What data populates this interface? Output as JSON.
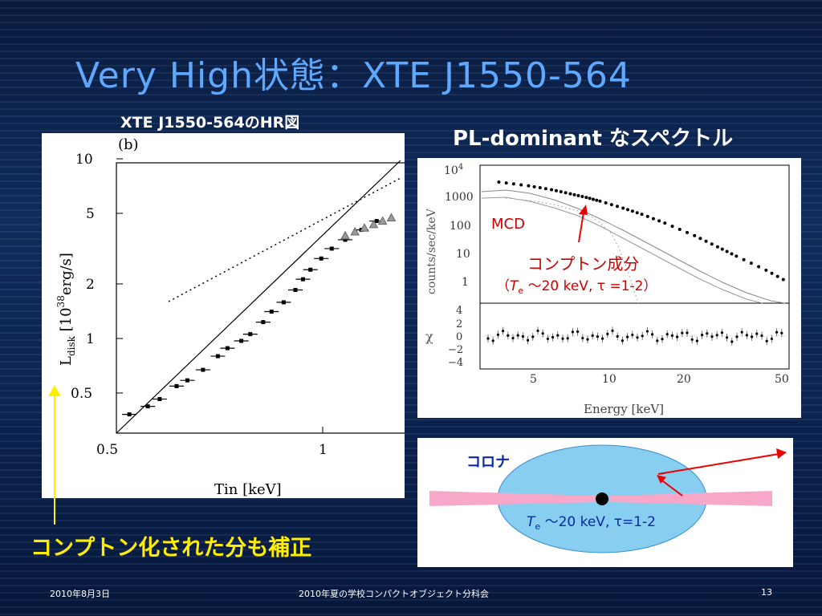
{
  "slide": {
    "title": "Very High状態：XTE J1550-564",
    "left_caption": "XTE J1550-564のHR図",
    "right_caption": "PL-dominant なスペクトル",
    "bottom_note": "コンプトン化された分も補正"
  },
  "footer": {
    "date": "2010年8月3日",
    "event": "2010年夏の学校コンパクトオブジェクト分科会",
    "page": "13"
  },
  "hr_plot": {
    "panel_label": "(b)",
    "ylabel_prefix": "L",
    "ylabel_sub": "disk",
    "ylabel_mid": " [10",
    "ylabel_sup": "38",
    "ylabel_suffix": "erg/s]",
    "xlabel": "Tin [keV]",
    "y_ticks": [
      "10",
      "5",
      "2",
      "1",
      "0.5"
    ],
    "x_ticks": [
      "0.5",
      "1"
    ]
  },
  "spectrum_plot": {
    "top_ylabel": "counts/sec/keV",
    "top_ytick_base": "10",
    "top_ytick_exp": "4",
    "top_yticks": [
      "1000",
      "100",
      "10",
      "1"
    ],
    "bottom_ylabel": "χ",
    "bottom_yticks": [
      "4",
      "2",
      "0",
      "−2",
      "−4"
    ],
    "xticks": [
      "5",
      "10",
      "20",
      "50"
    ],
    "xlabel": "Energy [keV]",
    "mcd_label": "MCD",
    "compton_label": "コンプトン成分",
    "compton_params_open": "（",
    "compton_T": "T",
    "compton_T_sub": "e",
    "compton_params_rest": " ～20 keV, τ =1-2）"
  },
  "corona_diagram": {
    "label": "コロナ",
    "T": "T",
    "T_sub": "e",
    "params_rest": " ～20 keV, τ=1-2"
  },
  "colors": {
    "title": "#5fa8ff",
    "highlight_yellow": "#ffee00",
    "annotation_red": "#cc0000",
    "corona_blue": "#87cef0",
    "disk_pink": "#f7a8c8"
  },
  "chart_data": [
    {
      "type": "scatter",
      "xlabel": "Tin [keV]",
      "ylabel": "Ldisk [10^38 erg/s]",
      "xscale": "log",
      "yscale": "log",
      "xlim": [
        0.5,
        1.2
      ],
      "ylim": [
        0.4,
        10
      ],
      "series": [
        {
          "name": "approx data (black squares/points)",
          "x": [
            0.52,
            0.55,
            0.57,
            0.6,
            0.62,
            0.65,
            0.68,
            0.7,
            0.73,
            0.75,
            0.78,
            0.8,
            0.83,
            0.86,
            0.88,
            0.9,
            0.93,
            0.96,
            1.0,
            1.05,
            1.1
          ],
          "y": [
            0.5,
            0.55,
            0.6,
            0.7,
            0.75,
            0.85,
            1.0,
            1.1,
            1.2,
            1.3,
            1.5,
            1.7,
            1.9,
            2.2,
            2.5,
            2.8,
            3.2,
            3.6,
            4.0,
            4.5,
            5.0
          ]
        },
        {
          "name": "approx data (grey triangles)",
          "x": [
            1.0,
            1.03,
            1.06,
            1.09,
            1.12,
            1.15
          ],
          "y": [
            4.2,
            4.4,
            4.6,
            4.8,
            5.0,
            5.2
          ]
        }
      ],
      "lines": [
        {
          "name": "L ∝ T^4",
          "from": [
            0.5,
            0.4
          ],
          "to": [
            1.2,
            10
          ]
        },
        {
          "name": "dotted relation",
          "from": [
            0.6,
            1.5
          ],
          "to": [
            1.2,
            7.5
          ],
          "style": "dotted"
        }
      ]
    },
    {
      "type": "line",
      "xlabel": "Energy [keV]",
      "ylabel": "counts/sec/keV",
      "xscale": "log",
      "yscale": "log",
      "xlim": [
        2.5,
        50
      ],
      "ylim": [
        0.3,
        15000
      ],
      "series": [
        {
          "name": "data",
          "x": [
            3,
            4,
            5,
            6,
            7,
            8,
            10,
            12,
            15,
            20,
            25,
            30,
            40,
            50
          ],
          "y": [
            4000,
            3000,
            2200,
            1600,
            1200,
            900,
            520,
            320,
            160,
            60,
            25,
            12,
            4,
            1.5
          ]
        }
      ]
    }
  ]
}
